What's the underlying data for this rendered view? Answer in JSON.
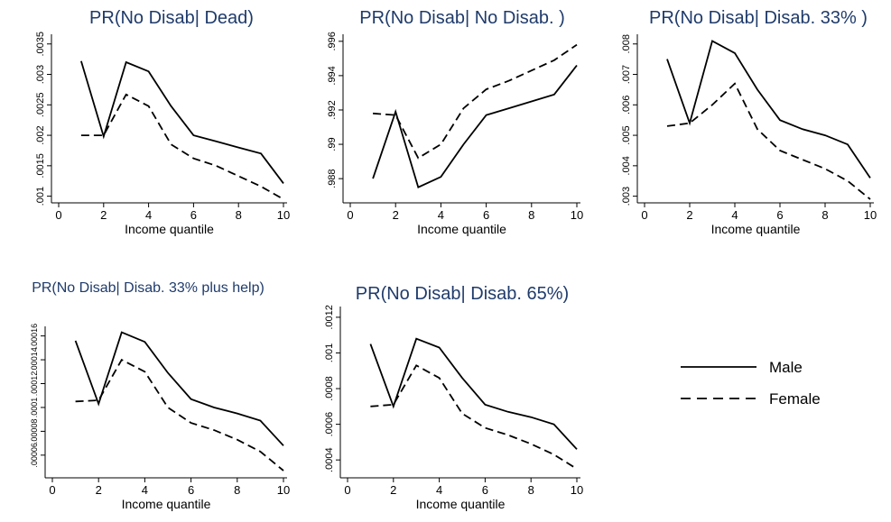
{
  "chart_data": [
    {
      "type": "line",
      "title": "PR(No Disab| Dead)",
      "xlabel": "Income quantile",
      "ylabel": "",
      "xlim": [
        0,
        10
      ],
      "ylim": [
        0.00095,
        0.0036
      ],
      "xticks": [
        "0",
        "2",
        "4",
        "6",
        "8",
        "10"
      ],
      "yticks": [
        {
          "v": 0.001,
          "label": ".001"
        },
        {
          "v": 0.0015,
          "label": ".0015"
        },
        {
          "v": 0.002,
          "label": ".002"
        },
        {
          "v": 0.0025,
          "label": ".0025"
        },
        {
          "v": 0.003,
          "label": ".003"
        },
        {
          "v": 0.0035,
          "label": ".0035"
        }
      ],
      "x": [
        1,
        2,
        3,
        4,
        5,
        6,
        7,
        8,
        9,
        10
      ],
      "series": [
        {
          "name": "Male",
          "values": [
            0.00322,
            0.00198,
            0.0032,
            0.00305,
            0.00248,
            0.002,
            0.0019,
            0.0018,
            0.0017,
            0.00121
          ]
        },
        {
          "name": "Female",
          "values": [
            0.002,
            0.002,
            0.00267,
            0.00248,
            0.00185,
            0.00162,
            0.0015,
            0.00133,
            0.00116,
            0.00095
          ]
        }
      ]
    },
    {
      "type": "line",
      "title": "PR(No Disab| No Disab. )",
      "xlabel": "Income quantile",
      "ylabel": "",
      "xlim": [
        0,
        10
      ],
      "ylim": [
        0.9868,
        0.9962
      ],
      "xticks": [
        "0",
        "2",
        "4",
        "6",
        "8",
        "10"
      ],
      "yticks": [
        {
          "v": 0.988,
          "label": ".988"
        },
        {
          "v": 0.99,
          "label": ".99"
        },
        {
          "v": 0.992,
          "label": ".992"
        },
        {
          "v": 0.994,
          "label": ".994"
        },
        {
          "v": 0.996,
          "label": ".996"
        }
      ],
      "x": [
        1,
        2,
        3,
        4,
        5,
        6,
        7,
        8,
        9,
        10
      ],
      "series": [
        {
          "name": "Male",
          "values": [
            0.988,
            0.9919,
            0.9875,
            0.9881,
            0.99,
            0.9917,
            0.9921,
            0.9925,
            0.9929,
            0.9946
          ]
        },
        {
          "name": "Female",
          "values": [
            0.9918,
            0.9917,
            0.9892,
            0.99,
            0.9921,
            0.9932,
            0.9937,
            0.9943,
            0.9949,
            0.9958
          ]
        }
      ]
    },
    {
      "type": "line",
      "title": "PR(No Disab| Disab. 33% )",
      "xlabel": "Income quantile",
      "ylabel": "",
      "xlim": [
        0,
        10
      ],
      "ylim": [
        0.0029,
        0.0082
      ],
      "xticks": [
        "0",
        "2",
        "4",
        "6",
        "8",
        "10"
      ],
      "yticks": [
        {
          "v": 0.003,
          "label": ".003"
        },
        {
          "v": 0.004,
          "label": ".004"
        },
        {
          "v": 0.005,
          "label": ".005"
        },
        {
          "v": 0.006,
          "label": ".006"
        },
        {
          "v": 0.007,
          "label": ".007"
        },
        {
          "v": 0.008,
          "label": ".008"
        }
      ],
      "x": [
        1,
        2,
        3,
        4,
        5,
        6,
        7,
        8,
        9,
        10
      ],
      "series": [
        {
          "name": "Male",
          "values": [
            0.0075,
            0.0054,
            0.0081,
            0.0077,
            0.0065,
            0.0055,
            0.0052,
            0.005,
            0.0047,
            0.0036
          ]
        },
        {
          "name": "Female",
          "values": [
            0.0053,
            0.0054,
            0.006,
            0.0067,
            0.0052,
            0.0045,
            0.0042,
            0.0039,
            0.0035,
            0.0029
          ]
        }
      ]
    },
    {
      "type": "line",
      "title": "PR(No Disab| Disab. 33%  plus help)",
      "xlabel": "Income quantile",
      "ylabel": "",
      "xlim": [
        0,
        10
      ],
      "ylim": [
        4.4e-05,
        0.000165
      ],
      "xticks": [
        "0",
        "2",
        "4",
        "6",
        "8",
        "10"
      ],
      "yticks": [
        {
          "v": 6e-05,
          "label": ".00006"
        },
        {
          "v": 8e-05,
          "label": ".00008"
        },
        {
          "v": 0.0001,
          "label": ".0001"
        },
        {
          "v": 0.00012,
          "label": ".00012"
        },
        {
          "v": 0.00014,
          "label": ".00014"
        },
        {
          "v": 0.00016,
          "label": ".00016"
        }
      ],
      "x": [
        1,
        2,
        3,
        4,
        5,
        6,
        7,
        8,
        9,
        10
      ],
      "series": [
        {
          "name": "Male",
          "values": [
            0.000156,
            0.000103,
            0.000163,
            0.000155,
            0.000129,
            0.000107,
            0.0001,
            9.5e-05,
            8.9e-05,
            6.8e-05
          ]
        },
        {
          "name": "Female",
          "values": [
            0.000105,
            0.000106,
            0.00014,
            0.00013,
            0.0001,
            8.7e-05,
            8.1e-05,
            7.3e-05,
            6.3e-05,
            4.7e-05
          ]
        }
      ]
    },
    {
      "type": "line",
      "title": "PR(No Disab| Disab. 65%)",
      "xlabel": "Income quantile",
      "ylabel": "",
      "xlim": [
        0,
        10
      ],
      "ylim": [
        0.00032,
        0.00124
      ],
      "xticks": [
        "0",
        "2",
        "4",
        "6",
        "8",
        "10"
      ],
      "yticks": [
        {
          "v": 0.0004,
          "label": ".0004"
        },
        {
          "v": 0.0006,
          "label": ".0006"
        },
        {
          "v": 0.0008,
          "label": ".0008"
        },
        {
          "v": 0.001,
          "label": ".001"
        },
        {
          "v": 0.0012,
          "label": ".0012"
        }
      ],
      "x": [
        1,
        2,
        3,
        4,
        5,
        6,
        7,
        8,
        9,
        10
      ],
      "series": [
        {
          "name": "Male",
          "values": [
            0.00105,
            0.0007,
            0.00108,
            0.00103,
            0.00086,
            0.00071,
            0.00067,
            0.00064,
            0.0006,
            0.00046
          ]
        },
        {
          "name": "Female",
          "values": [
            0.0007,
            0.00071,
            0.00093,
            0.00086,
            0.00066,
            0.00058,
            0.00054,
            0.00049,
            0.00043,
            0.00035
          ]
        }
      ]
    }
  ],
  "legend": {
    "placement": "right",
    "items": [
      {
        "label": "Male",
        "style": "solid"
      },
      {
        "label": "Female",
        "style": "dashed"
      }
    ]
  },
  "colors": {
    "lines": "#000000",
    "title": "#1f3b6b",
    "axes": "#000000"
  }
}
